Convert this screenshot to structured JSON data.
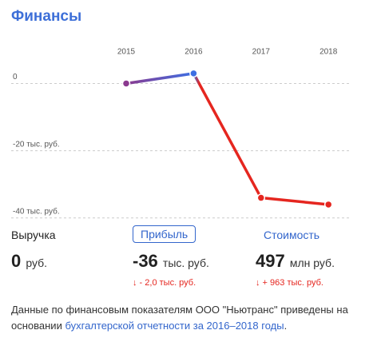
{
  "header": {
    "title": "Финансы"
  },
  "chart_data": {
    "type": "line",
    "categories": [
      "2015",
      "2016",
      "2017",
      "2018"
    ],
    "series": [
      {
        "values": [
          0,
          3,
          -34,
          -36
        ],
        "colors": [
          "#8b3a8f",
          "#3d6fe3",
          "#e5261f",
          "#e5261f"
        ]
      }
    ],
    "ylim": [
      -41,
      7
    ],
    "yticks": [
      0,
      {
        "value": -20,
        "label": "-20 тыс. руб."
      },
      {
        "value": -40,
        "label": "-40 тыс. руб."
      }
    ],
    "grid": true
  },
  "metrics": [
    {
      "label": "Выручка",
      "value": "0",
      "unit": "руб."
    },
    {
      "label": "Прибыль",
      "value": "-36",
      "unit": "тыс. руб.",
      "change": "↓ - 2,0 тыс. руб."
    },
    {
      "label": "Стоимость",
      "value": "497",
      "unit": "млн руб.",
      "change": "↓ + 963 тыс. руб."
    }
  ],
  "footer": {
    "text": "Данные по финансовым показателям ООО \"Ньютранс\" приведены на основании ",
    "link": "бухгалтерской отчетности за 2016–2018 годы",
    "end": "."
  }
}
